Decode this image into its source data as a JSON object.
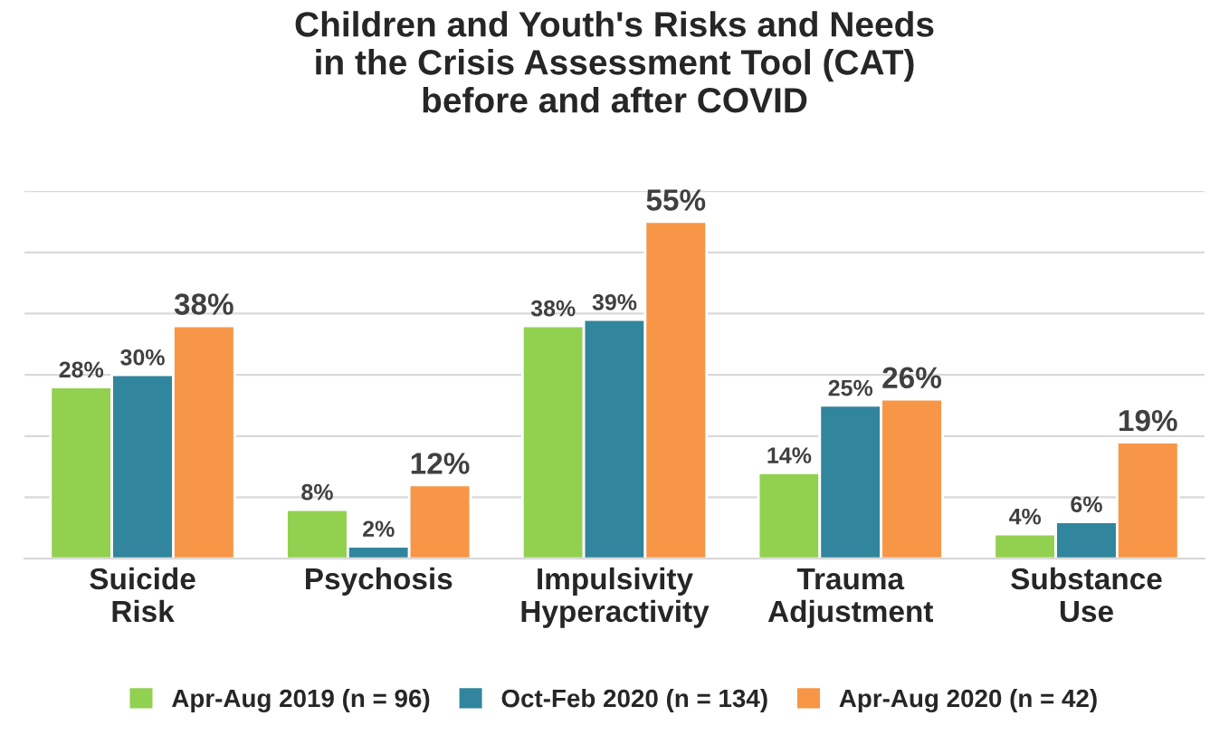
{
  "chart_data": {
    "type": "bar",
    "title": "Children and Youth's Risks and Needs\nin the Crisis Assessment Tool (CAT)\nbefore and after COVID",
    "categories": [
      "Suicide\nRisk",
      "Psychosis",
      "Impulsivity\nHyperactivity",
      "Trauma\nAdjustment",
      "Substance\nUse"
    ],
    "series": [
      {
        "name": "Apr-Aug 2019 (n = 96)",
        "color": "#92d050",
        "values": [
          28,
          8,
          38,
          14,
          4
        ],
        "value_labels": [
          "28%",
          "8%",
          "38%",
          "14%",
          "4%"
        ]
      },
      {
        "name": "Oct-Feb 2020 (n = 134)",
        "color": "#31859c",
        "values": [
          30,
          2,
          39,
          25,
          6
        ],
        "value_labels": [
          "30%",
          "2%",
          "39%",
          "25%",
          "6%"
        ]
      },
      {
        "name": "Apr-Aug 2020 (n = 42)",
        "color": "#f79646",
        "values": [
          38,
          12,
          55,
          26,
          19
        ],
        "value_labels": [
          "38%",
          "12%",
          "55%",
          "26%",
          "19%"
        ]
      }
    ],
    "ylim": [
      0,
      60
    ],
    "yticks": [
      {
        "value": 0,
        "label": null
      },
      {
        "value": 10,
        "label": null
      },
      {
        "value": 20,
        "label": null
      },
      {
        "value": 30,
        "label": null
      },
      {
        "value": 40,
        "label": null
      },
      {
        "value": 50,
        "label": null
      },
      {
        "value": 60,
        "label": null
      }
    ],
    "tick_labels": "x",
    "grid": "y",
    "legend": "bottom"
  }
}
